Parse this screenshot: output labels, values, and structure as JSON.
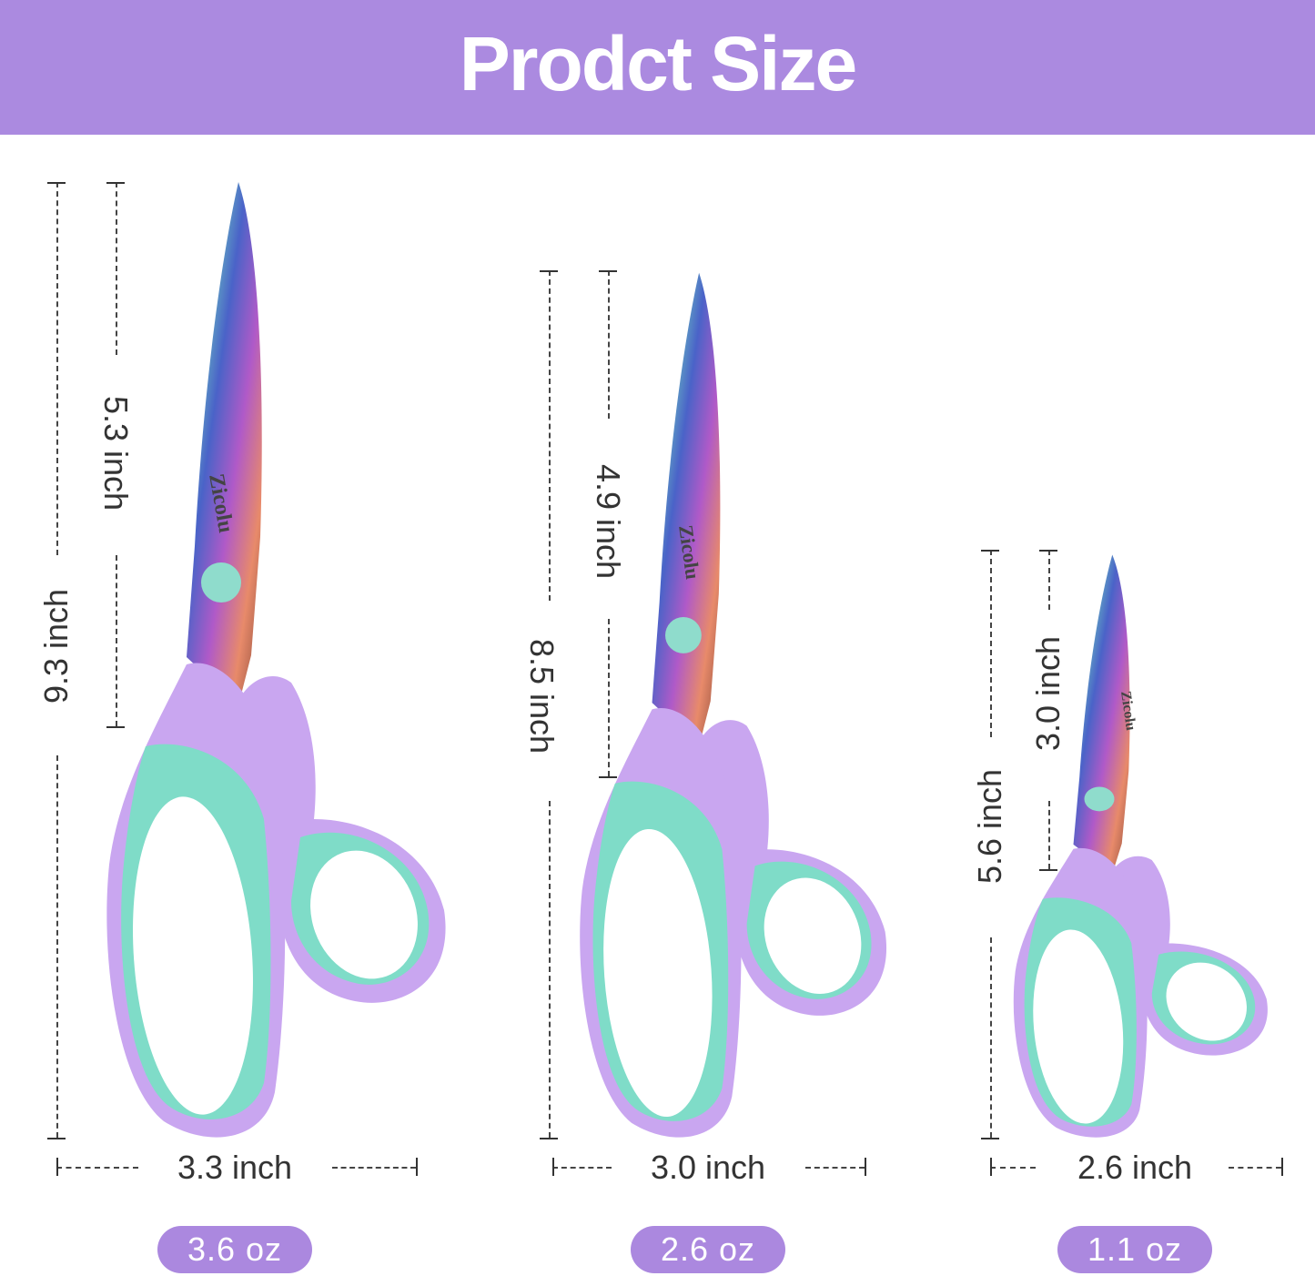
{
  "header": {
    "title": "Prodct Size",
    "background": "#ab8ae0"
  },
  "brand": "Zicolu",
  "products": [
    {
      "total_length": "9.3 inch",
      "blade_length": "5.3 inch",
      "handle_width": "3.3 inch",
      "weight": "3.6 oz"
    },
    {
      "total_length": "8.5 inch",
      "blade_length": "4.9 inch",
      "handle_width": "3.0 inch",
      "weight": "2.6 oz"
    },
    {
      "total_length": "5.6 inch",
      "blade_length": "3.0 inch",
      "handle_width": "2.6 inch",
      "weight": "1.1 oz"
    }
  ],
  "colors": {
    "handle_outer": "#c9a6f0",
    "handle_inner": "#7fdcc8",
    "pill": "#ab88df"
  }
}
